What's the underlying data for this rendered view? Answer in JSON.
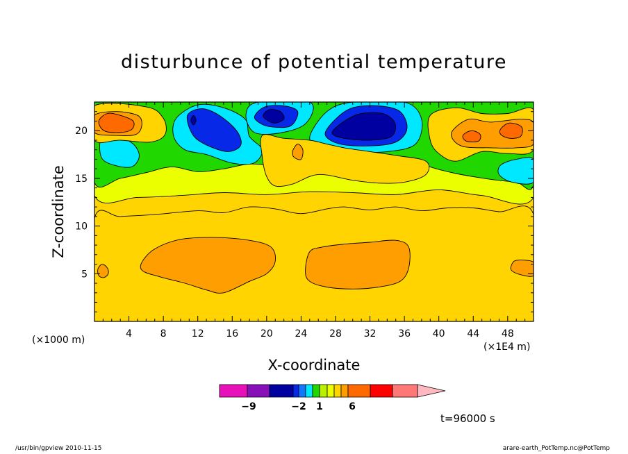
{
  "chart_data": {
    "type": "heatmap",
    "title": "disturbunce of potential temperature",
    "xlabel": "X-coordinate",
    "ylabel": "Z-coordinate",
    "x_units_left": "(×1000 m)",
    "x_units_right": "(×1E4 m)",
    "xlim": [
      0,
      51
    ],
    "ylim": [
      0,
      23
    ],
    "x_ticks": [
      4,
      8,
      12,
      16,
      20,
      24,
      28,
      32,
      36,
      40,
      44,
      48
    ],
    "y_ticks": [
      5,
      10,
      15,
      20
    ],
    "background_level_color": "#ffd400",
    "regions": [
      {
        "level": "upper-band",
        "color": "#ecff00",
        "polygon": [
          [
            0,
            13.2
          ],
          [
            0,
            23
          ],
          [
            51,
            23
          ],
          [
            51,
            13.0
          ],
          [
            45,
            13.2
          ],
          [
            40,
            13.8
          ],
          [
            35,
            13.3
          ],
          [
            30,
            13.5
          ],
          [
            25,
            13.6
          ],
          [
            20,
            13.3
          ],
          [
            15,
            13.5
          ],
          [
            10,
            13.2
          ],
          [
            5,
            13.0
          ]
        ]
      },
      {
        "level": "lower-band-top",
        "color": "#ffd400",
        "polygon": [
          [
            0,
            0
          ],
          [
            0,
            10.8
          ],
          [
            3,
            11.0
          ],
          [
            7,
            11.2
          ],
          [
            12,
            11.6
          ],
          [
            15,
            11.4
          ],
          [
            18,
            12.0
          ],
          [
            21,
            11.8
          ],
          [
            24,
            11.3
          ],
          [
            27,
            11.8
          ],
          [
            29,
            12.0
          ],
          [
            32,
            11.7
          ],
          [
            35,
            12.0
          ],
          [
            38,
            11.6
          ],
          [
            41,
            11.9
          ],
          [
            44,
            11.9
          ],
          [
            47,
            11.5
          ],
          [
            51,
            11.2
          ],
          [
            51,
            0
          ]
        ]
      },
      {
        "level": "green",
        "color": "#20d800",
        "polygon": [
          [
            0,
            14.6
          ],
          [
            0,
            23
          ],
          [
            51,
            23
          ],
          [
            51,
            14.4
          ],
          [
            49,
            14.6
          ],
          [
            46,
            14.9
          ],
          [
            42,
            15.5
          ],
          [
            39,
            16.2
          ],
          [
            36,
            17.2
          ],
          [
            33,
            16.5
          ],
          [
            30,
            16.4
          ],
          [
            27,
            16.6
          ],
          [
            24,
            16.0
          ],
          [
            21,
            16.3
          ],
          [
            18,
            16.5
          ],
          [
            15,
            16.0
          ],
          [
            12,
            15.7
          ],
          [
            9,
            16.2
          ],
          [
            6,
            15.6
          ],
          [
            3,
            15.0
          ]
        ]
      },
      {
        "level": "cyan-left",
        "color": "#00e8ff",
        "polygon": [
          [
            0.8,
            19.2
          ],
          [
            2.5,
            19.5
          ],
          [
            4.5,
            18.6
          ],
          [
            5.2,
            17.3
          ],
          [
            4.3,
            16.2
          ],
          [
            2.2,
            16.4
          ],
          [
            0.8,
            17.2
          ]
        ]
      },
      {
        "level": "cyan-center-left",
        "color": "#00e8ff",
        "polygon": [
          [
            9.5,
            21.3
          ],
          [
            12,
            22.7
          ],
          [
            15,
            22.4
          ],
          [
            17.5,
            21.2
          ],
          [
            18,
            19.4
          ],
          [
            19.5,
            18.0
          ],
          [
            18.5,
            16.6
          ],
          [
            16,
            16.6
          ],
          [
            13,
            17.5
          ],
          [
            10.5,
            18.0
          ],
          [
            9.2,
            19.4
          ]
        ]
      },
      {
        "level": "cyan-center",
        "color": "#00e8ff",
        "polygon": [
          [
            17.6,
            21.7
          ],
          [
            19,
            23
          ],
          [
            25,
            23
          ],
          [
            24.6,
            20.8
          ],
          [
            21.8,
            19.8
          ],
          [
            18.6,
            19.8
          ]
        ]
      },
      {
        "level": "cyan-right",
        "color": "#00e8ff",
        "polygon": [
          [
            25,
            19.3
          ],
          [
            27,
            22.0
          ],
          [
            30,
            23
          ],
          [
            36,
            23
          ],
          [
            38,
            21.2
          ],
          [
            37.3,
            18.6
          ],
          [
            34,
            17.8
          ],
          [
            30,
            17.8
          ],
          [
            26.5,
            18.1
          ]
        ]
      },
      {
        "level": "cyan-far-right",
        "color": "#00e8ff",
        "polygon": [
          [
            47.2,
            16.4
          ],
          [
            49,
            17.0
          ],
          [
            51,
            17.0
          ],
          [
            51,
            14.6
          ],
          [
            48.5,
            14.6
          ],
          [
            47,
            15.4
          ]
        ]
      },
      {
        "level": "orange-bottom-left",
        "color": "#ff9e00",
        "polygon": [
          [
            5.5,
            6.2
          ],
          [
            7,
            7.6
          ],
          [
            10,
            8.6
          ],
          [
            14,
            8.8
          ],
          [
            18,
            8.5
          ],
          [
            20.5,
            7.8
          ],
          [
            21,
            6.3
          ],
          [
            20,
            5.0
          ],
          [
            18,
            4.2
          ],
          [
            15,
            3.0
          ],
          [
            13,
            3.3
          ],
          [
            10.5,
            4.0
          ],
          [
            7.5,
            4.7
          ],
          [
            5.6,
            5.3
          ]
        ]
      },
      {
        "level": "orange-bottom-center",
        "color": "#ff9e00",
        "polygon": [
          [
            24.5,
            5.3
          ],
          [
            25,
            7.3
          ],
          [
            26.5,
            7.8
          ],
          [
            29,
            8.1
          ],
          [
            32,
            8.3
          ],
          [
            35,
            8.5
          ],
          [
            36.5,
            7.8
          ],
          [
            36.5,
            5.6
          ],
          [
            35.5,
            4.2
          ],
          [
            33,
            3.6
          ],
          [
            30,
            3.4
          ],
          [
            27,
            3.6
          ],
          [
            25,
            4.2
          ]
        ]
      },
      {
        "level": "orange-dot-left",
        "color": "#ff9e00",
        "polygon": [
          [
            0.4,
            5.5
          ],
          [
            0.9,
            6.0
          ],
          [
            1.5,
            5.6
          ],
          [
            1.6,
            5.0
          ],
          [
            1.1,
            4.6
          ],
          [
            0.5,
            4.8
          ]
        ]
      },
      {
        "level": "orange-dot-right",
        "color": "#ff9e00",
        "polygon": [
          [
            48.4,
            5.8
          ],
          [
            49,
            6.4
          ],
          [
            51,
            6.2
          ],
          [
            51,
            4.8
          ],
          [
            49.5,
            4.9
          ],
          [
            48.5,
            5.3
          ]
        ]
      },
      {
        "level": "orange-upper-center",
        "color": "#ffd400",
        "polygon": [
          [
            19.5,
            19.5
          ],
          [
            22,
            19.2
          ],
          [
            25,
            19.0
          ],
          [
            27,
            18.6
          ],
          [
            29,
            18.2
          ],
          [
            32,
            17.8
          ],
          [
            35,
            17.4
          ],
          [
            38.5,
            16.8
          ],
          [
            38.5,
            15.4
          ],
          [
            36,
            14.6
          ],
          [
            33,
            14.5
          ],
          [
            30,
            14.8
          ],
          [
            26,
            15.4
          ],
          [
            23,
            14.4
          ],
          [
            21,
            14.2
          ],
          [
            20,
            15.2
          ],
          [
            19.5,
            17.2
          ]
        ]
      },
      {
        "level": "yellow-top-left",
        "color": "#ffd400",
        "polygon": [
          [
            0,
            22.6
          ],
          [
            6,
            22.5
          ],
          [
            8,
            21.3
          ],
          [
            8.2,
            19.6
          ],
          [
            6.5,
            18.8
          ],
          [
            3,
            19.0
          ],
          [
            0,
            19.0
          ]
        ]
      },
      {
        "level": "orange-top-left",
        "color": "#ff9e00",
        "polygon": [
          [
            0,
            21.6
          ],
          [
            2.5,
            22.0
          ],
          [
            5,
            21.6
          ],
          [
            5.5,
            20.6
          ],
          [
            4.8,
            19.6
          ],
          [
            2.5,
            19.5
          ],
          [
            0,
            19.8
          ]
        ]
      },
      {
        "level": "red-top-left",
        "color": "#ff6a00",
        "polygon": [
          [
            0.5,
            21.0
          ],
          [
            1.5,
            21.8
          ],
          [
            3,
            21.6
          ],
          [
            4.5,
            21.0
          ],
          [
            4.3,
            20.1
          ],
          [
            2.8,
            19.8
          ],
          [
            1.1,
            20.0
          ]
        ]
      },
      {
        "level": "yellow-right",
        "color": "#ffd400",
        "polygon": [
          [
            39,
            21.6
          ],
          [
            42,
            22.4
          ],
          [
            45,
            21.8
          ],
          [
            48,
            21.8
          ],
          [
            51,
            22.2
          ],
          [
            51,
            18.0
          ],
          [
            48,
            17.6
          ],
          [
            45,
            17.8
          ],
          [
            42,
            16.8
          ],
          [
            40,
            17.6
          ],
          [
            39,
            19.0
          ]
        ]
      },
      {
        "level": "orange-right",
        "color": "#ff9e00",
        "polygon": [
          [
            41.6,
            20.0
          ],
          [
            43.5,
            21.2
          ],
          [
            46,
            20.9
          ],
          [
            49.5,
            21.2
          ],
          [
            51,
            20.8
          ],
          [
            51,
            18.6
          ],
          [
            49,
            18.2
          ],
          [
            46,
            18.2
          ],
          [
            43,
            18.3
          ],
          [
            41.7,
            19.0
          ]
        ]
      },
      {
        "level": "red-right-1",
        "color": "#ff6a00",
        "polygon": [
          [
            42.8,
            19.5
          ],
          [
            43.8,
            20.0
          ],
          [
            44.8,
            19.6
          ],
          [
            44.6,
            18.9
          ],
          [
            43.2,
            18.9
          ]
        ]
      },
      {
        "level": "red-right-2",
        "color": "#ff6a00",
        "polygon": [
          [
            47.2,
            20.2
          ],
          [
            48.2,
            20.8
          ],
          [
            49.6,
            20.4
          ],
          [
            49.5,
            19.4
          ],
          [
            48.2,
            19.2
          ],
          [
            47.2,
            19.6
          ]
        ]
      },
      {
        "level": "yellow-small",
        "color": "#ff9e00",
        "polygon": [
          [
            23,
            17.8
          ],
          [
            23.6,
            18.6
          ],
          [
            24.2,
            18.0
          ],
          [
            24.0,
            17.0
          ],
          [
            23.2,
            17.2
          ]
        ]
      },
      {
        "level": "blue-center-left",
        "color": "#0828e8",
        "polygon": [
          [
            10.8,
            21.6
          ],
          [
            12.5,
            22.3
          ],
          [
            14.5,
            21.6
          ],
          [
            16.5,
            20.0
          ],
          [
            17.0,
            18.5
          ],
          [
            15.5,
            17.8
          ],
          [
            13,
            18.5
          ],
          [
            11.4,
            19.6
          ]
        ]
      },
      {
        "level": "blue-center",
        "color": "#0828e8",
        "polygon": [
          [
            18.6,
            21.5
          ],
          [
            19.8,
            22.5
          ],
          [
            22,
            22.6
          ],
          [
            23.6,
            22.0
          ],
          [
            22.8,
            20.5
          ],
          [
            20.5,
            20.4
          ],
          [
            19.2,
            20.8
          ]
        ]
      },
      {
        "level": "blue-right",
        "color": "#0828e8",
        "polygon": [
          [
            26.8,
            19.6
          ],
          [
            28,
            21.2
          ],
          [
            30,
            22.4
          ],
          [
            33,
            22.6
          ],
          [
            35.5,
            22.0
          ],
          [
            36.3,
            20.2
          ],
          [
            35,
            18.8
          ],
          [
            32,
            18.4
          ],
          [
            28.5,
            18.6
          ]
        ]
      },
      {
        "level": "navy-center",
        "color": "#0000a0",
        "polygon": [
          [
            19.6,
            21.5
          ],
          [
            20.3,
            22.2
          ],
          [
            21.6,
            22.0
          ],
          [
            22.0,
            21.2
          ],
          [
            20.8,
            20.8
          ]
        ]
      },
      {
        "level": "navy-right",
        "color": "#0000a0",
        "polygon": [
          [
            27.6,
            19.8
          ],
          [
            29.2,
            21.1
          ],
          [
            31,
            21.8
          ],
          [
            33.5,
            21.8
          ],
          [
            34.9,
            20.8
          ],
          [
            34.5,
            19.4
          ],
          [
            32,
            19.0
          ],
          [
            29,
            19.2
          ]
        ]
      },
      {
        "level": "navy-dot",
        "color": "#0000a0",
        "polygon": [
          [
            11.2,
            21.1
          ],
          [
            11.5,
            21.6
          ],
          [
            11.8,
            21.1
          ],
          [
            11.5,
            20.6
          ]
        ]
      }
    ],
    "colorbar": {
      "colors": [
        "#e810b8",
        "#8810b8",
        "#0000a0",
        "#0828e8",
        "#1078ff",
        "#00e8ff",
        "#20d800",
        "#b8f000",
        "#ecff00",
        "#ffd400",
        "#ff9e00",
        "#ff6a00",
        "#ff0000",
        "#ff7878",
        "#ffb8c0"
      ],
      "tick_labels": [
        "−9",
        "−2",
        "1",
        "6"
      ]
    },
    "time_label": "t=96000 s",
    "footer_left": "/usr/bin/gpview   2010-11-15",
    "footer_right": "arare-earth_PotTemp.nc@PotTemp"
  }
}
